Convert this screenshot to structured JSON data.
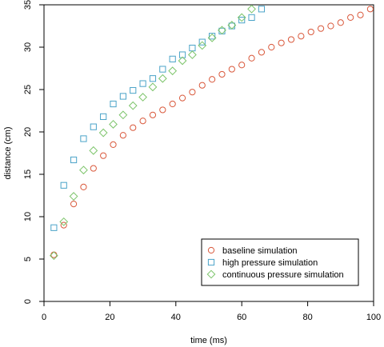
{
  "chart_data": {
    "type": "scatter",
    "xlabel": "time (ms)",
    "ylabel": "distance (cm)",
    "xlim": [
      0,
      100
    ],
    "ylim": [
      0,
      35
    ],
    "xticks": [
      0,
      20,
      40,
      60,
      80,
      100
    ],
    "yticks": [
      0,
      5,
      10,
      15,
      20,
      25,
      30,
      35
    ],
    "grid": false,
    "legend_position": "bottom-right",
    "series": [
      {
        "name": "baseline simulation",
        "marker": "circle",
        "color": "#d9583b",
        "x": [
          3,
          6,
          9,
          12,
          15,
          18,
          21,
          24,
          27,
          30,
          33,
          36,
          39,
          42,
          45,
          48,
          51,
          54,
          57,
          60,
          63,
          66,
          69,
          72,
          75,
          78,
          81,
          84,
          87,
          90,
          93,
          96,
          99
        ],
        "y": [
          5.5,
          9.0,
          11.5,
          13.5,
          15.7,
          17.2,
          18.5,
          19.6,
          20.5,
          21.3,
          22.0,
          22.6,
          23.3,
          24.0,
          24.7,
          25.5,
          26.2,
          26.8,
          27.4,
          27.9,
          28.7,
          29.4,
          30.0,
          30.5,
          30.9,
          31.3,
          31.8,
          32.2,
          32.5,
          32.9,
          33.5,
          33.8,
          34.5
        ]
      },
      {
        "name": "high pressure simulation",
        "marker": "square",
        "color": "#4aa3c8",
        "x": [
          3,
          6,
          9,
          12,
          15,
          18,
          21,
          24,
          27,
          30,
          33,
          36,
          39,
          42,
          45,
          48,
          51,
          54,
          57,
          60,
          63,
          66
        ],
        "y": [
          8.7,
          13.7,
          16.7,
          19.2,
          20.6,
          21.8,
          23.3,
          24.2,
          24.9,
          25.7,
          26.3,
          27.4,
          28.6,
          29.1,
          29.9,
          30.6,
          31.3,
          31.9,
          32.5,
          33.2,
          33.5,
          34.5
        ]
      },
      {
        "name": "continuous pressure simulation",
        "marker": "diamond",
        "color": "#7cc46a",
        "x": [
          3,
          6,
          9,
          12,
          15,
          18,
          21,
          24,
          27,
          30,
          33,
          36,
          39,
          42,
          45,
          48,
          51,
          54,
          57,
          60,
          63
        ],
        "y": [
          5.4,
          9.4,
          12.4,
          15.5,
          17.8,
          19.9,
          20.9,
          22.0,
          23.1,
          24.1,
          25.3,
          26.3,
          27.2,
          28.4,
          29.1,
          30.2,
          31.1,
          32.0,
          32.6,
          33.5,
          34.5
        ]
      }
    ]
  }
}
